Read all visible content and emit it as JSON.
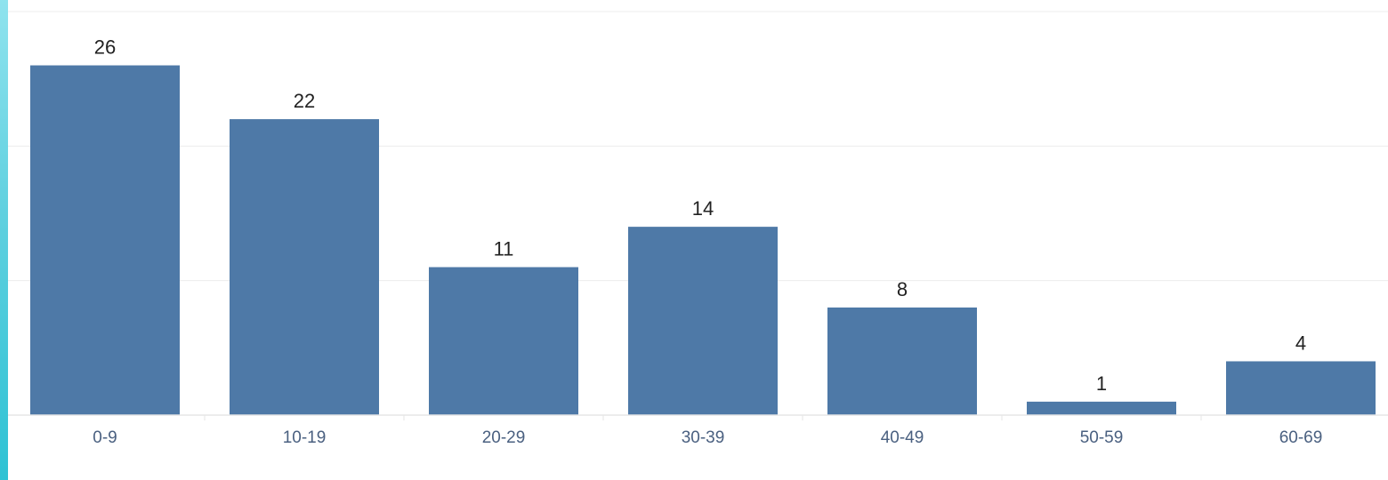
{
  "chart_data": {
    "type": "bar",
    "categories": [
      "0-9",
      "10-19",
      "20-29",
      "30-39",
      "40-49",
      "50-59",
      "60-69"
    ],
    "values": [
      26,
      22,
      11,
      14,
      8,
      1,
      4
    ],
    "ylim": [
      0,
      30
    ],
    "grid": true,
    "show_data_labels": true,
    "colors": {
      "bar": "#4e79a7",
      "accent": "#2ec2d4"
    }
  }
}
